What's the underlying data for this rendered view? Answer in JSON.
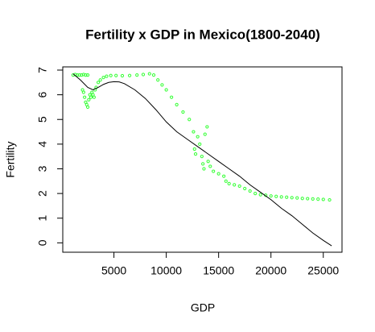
{
  "chart_data": {
    "type": "scatter",
    "title": "Fertility x GDP in Mexico(1800-2040)",
    "xlabel": "GDP",
    "ylabel": "Fertility",
    "xlim": [
      112,
      26788
    ],
    "ylim": [
      -0.38,
      7.13
    ],
    "xticks": [
      5000,
      10000,
      15000,
      20000,
      25000
    ],
    "yticks": [
      0,
      1,
      2,
      3,
      4,
      5,
      6,
      7
    ],
    "series": [
      {
        "type": "scatter",
        "color": "#33ff33",
        "x": [
          1100,
          1300,
          1500,
          1700,
          1900,
          2100,
          2300,
          2500,
          2000,
          2100,
          2200,
          2300,
          2400,
          2500,
          2600,
          2700,
          2800,
          2900,
          3000,
          3100,
          3200,
          3300,
          3500,
          3700,
          4000,
          4300,
          4700,
          5200,
          5800,
          6500,
          7200,
          7800,
          8400,
          8800,
          9200,
          9600,
          10000,
          10500,
          11000,
          11600,
          12200,
          12600,
          12700,
          12800,
          13000,
          13200,
          13400,
          13500,
          13600,
          13700,
          13900,
          14000,
          14200,
          14500,
          15000,
          15500,
          15700,
          16000,
          16500,
          17000,
          17500,
          18000,
          18500,
          19000,
          19500,
          20000,
          20500,
          21000,
          21500,
          22000,
          22500,
          23000,
          23500,
          24000,
          24500,
          25000,
          25600
        ],
        "values": [
          6.8,
          6.82,
          6.8,
          6.8,
          6.8,
          6.82,
          6.8,
          6.8,
          6.2,
          6.1,
          5.9,
          5.7,
          5.6,
          5.5,
          5.8,
          6.0,
          5.9,
          6.1,
          6.0,
          5.9,
          6.2,
          6.3,
          6.5,
          6.6,
          6.7,
          6.75,
          6.78,
          6.78,
          6.77,
          6.78,
          6.8,
          6.82,
          6.85,
          6.8,
          6.6,
          6.4,
          6.2,
          5.9,
          5.6,
          5.3,
          5.0,
          4.5,
          3.8,
          3.6,
          4.3,
          4.0,
          3.5,
          3.2,
          3.0,
          4.4,
          4.7,
          3.3,
          3.1,
          2.9,
          2.8,
          2.7,
          2.5,
          2.4,
          2.35,
          2.3,
          2.2,
          2.1,
          2.0,
          1.95,
          1.93,
          1.9,
          1.88,
          1.86,
          1.85,
          1.83,
          1.82,
          1.8,
          1.79,
          1.78,
          1.77,
          1.76,
          1.74
        ]
      },
      {
        "type": "line",
        "color": "#000000",
        "x": [
          1100,
          1800,
          2500,
          3000,
          3500,
          4000,
          4500,
          5000,
          5500,
          6000,
          7000,
          8000,
          9000,
          10000,
          11000,
          12000,
          13000,
          14000,
          15000,
          16000,
          17000,
          18000,
          19000,
          20000,
          21000,
          22000,
          23000,
          24000,
          25000,
          25800
        ],
        "values": [
          6.85,
          6.6,
          6.3,
          6.2,
          6.3,
          6.42,
          6.5,
          6.53,
          6.52,
          6.45,
          6.2,
          5.85,
          5.4,
          4.9,
          4.5,
          4.2,
          3.9,
          3.6,
          3.3,
          3.0,
          2.7,
          2.35,
          2.05,
          1.75,
          1.4,
          1.1,
          0.75,
          0.4,
          0.1,
          -0.12
        ]
      }
    ]
  }
}
